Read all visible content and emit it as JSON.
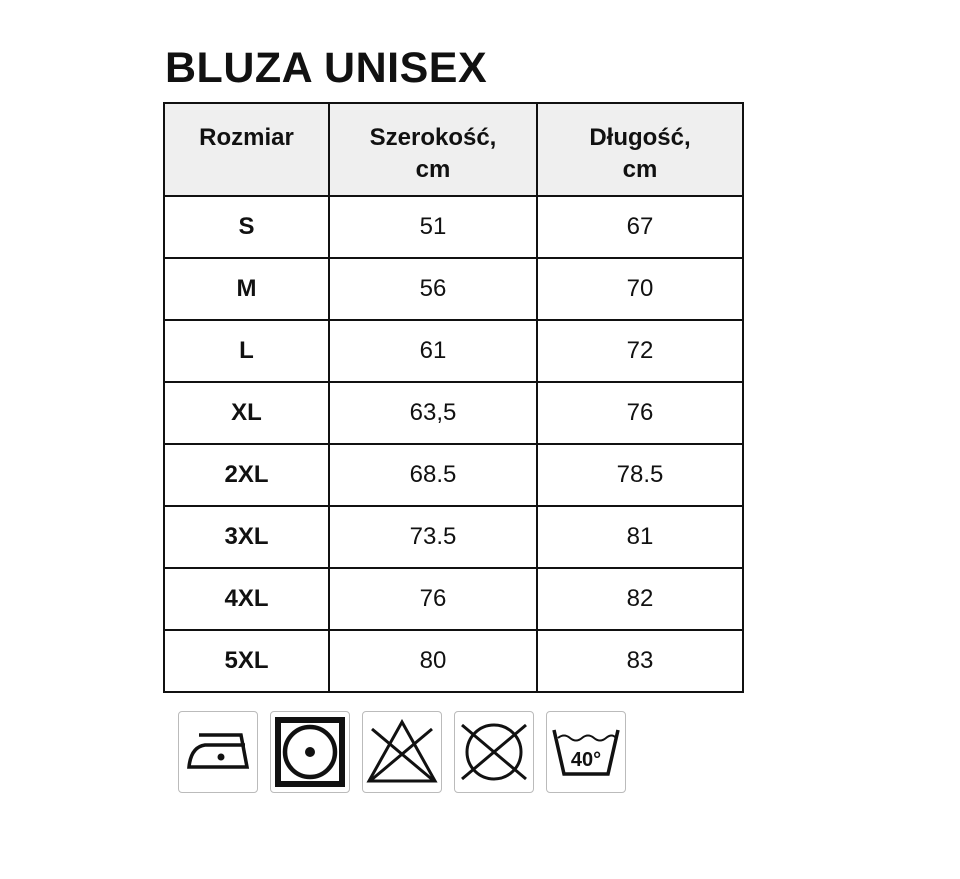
{
  "title": "BLUZA UNISEX",
  "table": {
    "headers": [
      "Rozmiar",
      "Szerokość,\ncm",
      "Długość,\ncm"
    ],
    "header_lines": [
      [
        "Rozmiar"
      ],
      [
        "Szerokość,",
        "cm"
      ],
      [
        "Długość,",
        "cm"
      ]
    ],
    "rows": [
      [
        "S",
        "51",
        "67"
      ],
      [
        "M",
        "56",
        "70"
      ],
      [
        "L",
        "61",
        "72"
      ],
      [
        "XL",
        "63,5",
        "76"
      ],
      [
        "2XL",
        "68.5",
        "78.5"
      ],
      [
        "3XL",
        "73.5",
        "81"
      ],
      [
        "4XL",
        "76",
        "82"
      ],
      [
        "5XL",
        "80",
        "83"
      ]
    ]
  },
  "care_icons": [
    {
      "name": "iron-low-temperature-icon"
    },
    {
      "name": "tumble-dry-low-icon"
    },
    {
      "name": "do-not-bleach-icon"
    },
    {
      "name": "do-not-dry-clean-icon"
    },
    {
      "name": "wash-40-icon",
      "label": "40°"
    }
  ]
}
